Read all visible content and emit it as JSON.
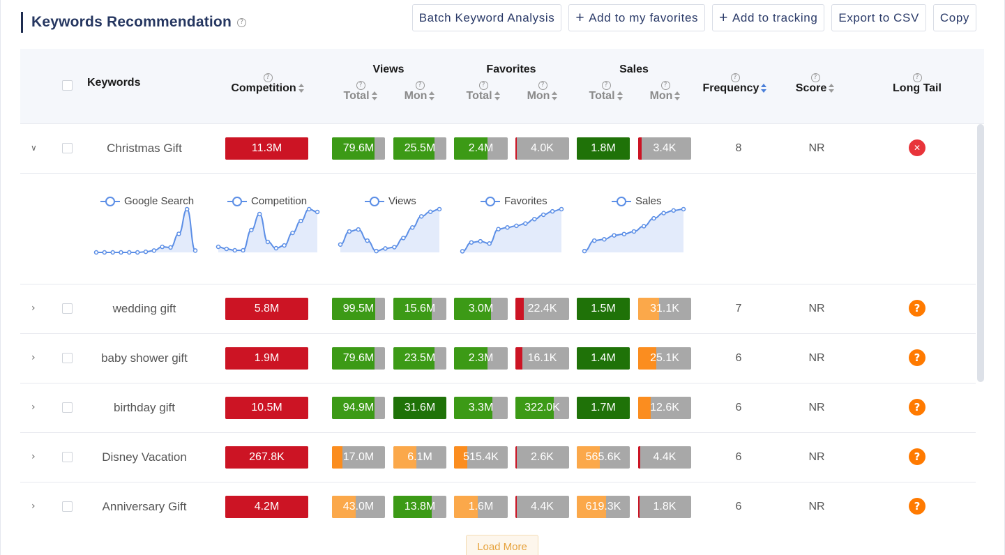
{
  "header": {
    "title": "Keywords Recommendation",
    "help_icon": "help-circle-icon"
  },
  "toolbar": {
    "batch_label": "Batch Keyword Analysis",
    "favorites_label": "Add to my favorites",
    "tracking_label": "Add to tracking",
    "export_label": "Export to CSV",
    "copy_label": "Copy"
  },
  "columns": {
    "keywords": "Keywords",
    "competition": "Competition",
    "views": "Views",
    "favorites": "Favorites",
    "sales": "Sales",
    "total": "Total",
    "mon": "Mon",
    "frequency": "Frequency",
    "score": "Score",
    "long_tail": "Long Tail"
  },
  "colors": {
    "red": "#cc1424",
    "green": "#3c9a16",
    "dark_green": "#1f7208",
    "orange": "#fb8d1f",
    "light_orange": "#fba84a",
    "gray": "#a8a8a8",
    "spark": "#5b8ee6"
  },
  "rows": [
    {
      "keyword": "Christmas Gift",
      "expanded": true,
      "competition": {
        "label": "11.3M",
        "pct": 100,
        "color": "red"
      },
      "views_total": {
        "label": "79.6M",
        "pct": 80,
        "color": "green"
      },
      "views_mon": {
        "label": "25.5M",
        "pct": 78,
        "color": "green"
      },
      "fav_total": {
        "label": "2.4M",
        "pct": 62,
        "color": "green"
      },
      "fav_mon": {
        "label": "4.0K",
        "pct": 3,
        "color": "red"
      },
      "sales_total": {
        "label": "1.8M",
        "pct": 100,
        "color": "dark_green"
      },
      "sales_mon": {
        "label": "3.4K",
        "pct": 7,
        "color": "red"
      },
      "frequency": "8",
      "score": "NR",
      "long_tail": "no"
    },
    {
      "keyword": "wedding gift",
      "expanded": false,
      "competition": {
        "label": "5.8M",
        "pct": 100,
        "color": "red"
      },
      "views_total": {
        "label": "99.5M",
        "pct": 81,
        "color": "green"
      },
      "views_mon": {
        "label": "15.6M",
        "pct": 72,
        "color": "green"
      },
      "fav_total": {
        "label": "3.0M",
        "pct": 69,
        "color": "green"
      },
      "fav_mon": {
        "label": "22.4K",
        "pct": 16,
        "color": "red"
      },
      "sales_total": {
        "label": "1.5M",
        "pct": 100,
        "color": "dark_green"
      },
      "sales_mon": {
        "label": "31.1K",
        "pct": 40,
        "color": "light_orange"
      },
      "frequency": "7",
      "score": "NR",
      "long_tail": "question"
    },
    {
      "keyword": "baby shower gift",
      "expanded": false,
      "competition": {
        "label": "1.9M",
        "pct": 100,
        "color": "red"
      },
      "views_total": {
        "label": "79.6M",
        "pct": 80,
        "color": "green"
      },
      "views_mon": {
        "label": "23.5M",
        "pct": 78,
        "color": "green"
      },
      "fav_total": {
        "label": "2.3M",
        "pct": 62,
        "color": "green"
      },
      "fav_mon": {
        "label": "16.1K",
        "pct": 13,
        "color": "red"
      },
      "sales_total": {
        "label": "1.4M",
        "pct": 100,
        "color": "dark_green"
      },
      "sales_mon": {
        "label": "25.1K",
        "pct": 34,
        "color": "orange"
      },
      "frequency": "6",
      "score": "NR",
      "long_tail": "question"
    },
    {
      "keyword": "birthday gift",
      "expanded": false,
      "competition": {
        "label": "10.5M",
        "pct": 100,
        "color": "red"
      },
      "views_total": {
        "label": "94.9M",
        "pct": 80,
        "color": "green"
      },
      "views_mon": {
        "label": "31.6M",
        "pct": 100,
        "color": "dark_green"
      },
      "fav_total": {
        "label": "3.3M",
        "pct": 72,
        "color": "green"
      },
      "fav_mon": {
        "label": "322.0K",
        "pct": 72,
        "color": "green"
      },
      "sales_total": {
        "label": "1.7M",
        "pct": 100,
        "color": "dark_green"
      },
      "sales_mon": {
        "label": "12.6K",
        "pct": 24,
        "color": "orange"
      },
      "frequency": "6",
      "score": "NR",
      "long_tail": "question"
    },
    {
      "keyword": "Disney Vacation",
      "expanded": false,
      "competition": {
        "label": "267.8K",
        "pct": 100,
        "color": "red"
      },
      "views_total": {
        "label": "17.0M",
        "pct": 20,
        "color": "orange"
      },
      "views_mon": {
        "label": "6.1M",
        "pct": 44,
        "color": "light_orange"
      },
      "fav_total": {
        "label": "515.4K",
        "pct": 25,
        "color": "orange"
      },
      "fav_mon": {
        "label": "2.6K",
        "pct": 3,
        "color": "red"
      },
      "sales_total": {
        "label": "565.6K",
        "pct": 43,
        "color": "light_orange"
      },
      "sales_mon": {
        "label": "4.4K",
        "pct": 4,
        "color": "red"
      },
      "frequency": "6",
      "score": "NR",
      "long_tail": "question"
    },
    {
      "keyword": "Anniversary Gift",
      "expanded": false,
      "competition": {
        "label": "4.2M",
        "pct": 100,
        "color": "red"
      },
      "views_total": {
        "label": "43.0M",
        "pct": 45,
        "color": "light_orange"
      },
      "views_mon": {
        "label": "13.8M",
        "pct": 72,
        "color": "green"
      },
      "fav_total": {
        "label": "1.6M",
        "pct": 44,
        "color": "light_orange"
      },
      "fav_mon": {
        "label": "4.4K",
        "pct": 3,
        "color": "red"
      },
      "sales_total": {
        "label": "619.3K",
        "pct": 55,
        "color": "light_orange"
      },
      "sales_mon": {
        "label": "1.8K",
        "pct": 3,
        "color": "red"
      },
      "frequency": "6",
      "score": "NR",
      "long_tail": "question"
    }
  ],
  "sparklines": [
    {
      "name": "Google Search",
      "values": [
        0,
        0,
        0,
        0,
        0,
        0,
        1,
        3,
        9,
        8,
        30,
        70,
        3
      ]
    },
    {
      "name": "Competition",
      "values": [
        8,
        5,
        3,
        3,
        32,
        55,
        15,
        6,
        10,
        28,
        45,
        62,
        58
      ]
    },
    {
      "name": "Views",
      "values": [
        12,
        32,
        35,
        18,
        2,
        6,
        8,
        22,
        38,
        55,
        62,
        66
      ]
    },
    {
      "name": "Favorites",
      "values": [
        2,
        18,
        20,
        16,
        42,
        45,
        48,
        52,
        60,
        68,
        74,
        78
      ]
    },
    {
      "name": "Sales",
      "values": [
        2,
        18,
        20,
        26,
        28,
        32,
        40,
        52,
        60,
        64,
        66
      ]
    }
  ],
  "load_more_label": "Load More"
}
